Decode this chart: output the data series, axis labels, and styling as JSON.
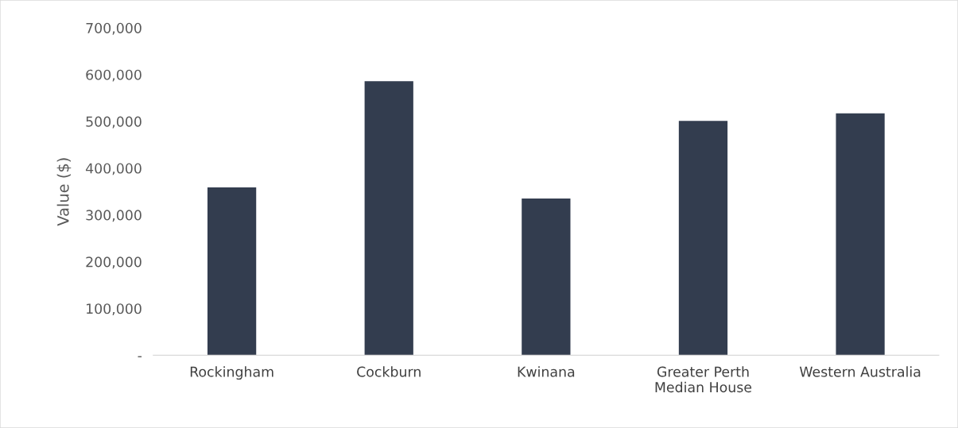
{
  "chart_data": {
    "type": "bar",
    "ylabel": "Value ($)",
    "categories": [
      "Rockingham",
      "Cockburn",
      "Kwinana",
      "Greater Perth\nMedian House",
      "Western Australia"
    ],
    "values": [
      359000,
      586000,
      335000,
      501000,
      517000
    ],
    "color": "#333d4f",
    "ylim": [
      0,
      700000
    ],
    "yticks": [
      {
        "value": 0,
        "label": "-"
      },
      {
        "value": 100000,
        "label": "100,000"
      },
      {
        "value": 200000,
        "label": "200,000"
      },
      {
        "value": 300000,
        "label": "300,000"
      },
      {
        "value": 400000,
        "label": "400,000"
      },
      {
        "value": 500000,
        "label": "500,000"
      },
      {
        "value": 600000,
        "label": "600,000"
      },
      {
        "value": 700000,
        "label": "700,000"
      }
    ],
    "grid": false,
    "legend": false
  }
}
